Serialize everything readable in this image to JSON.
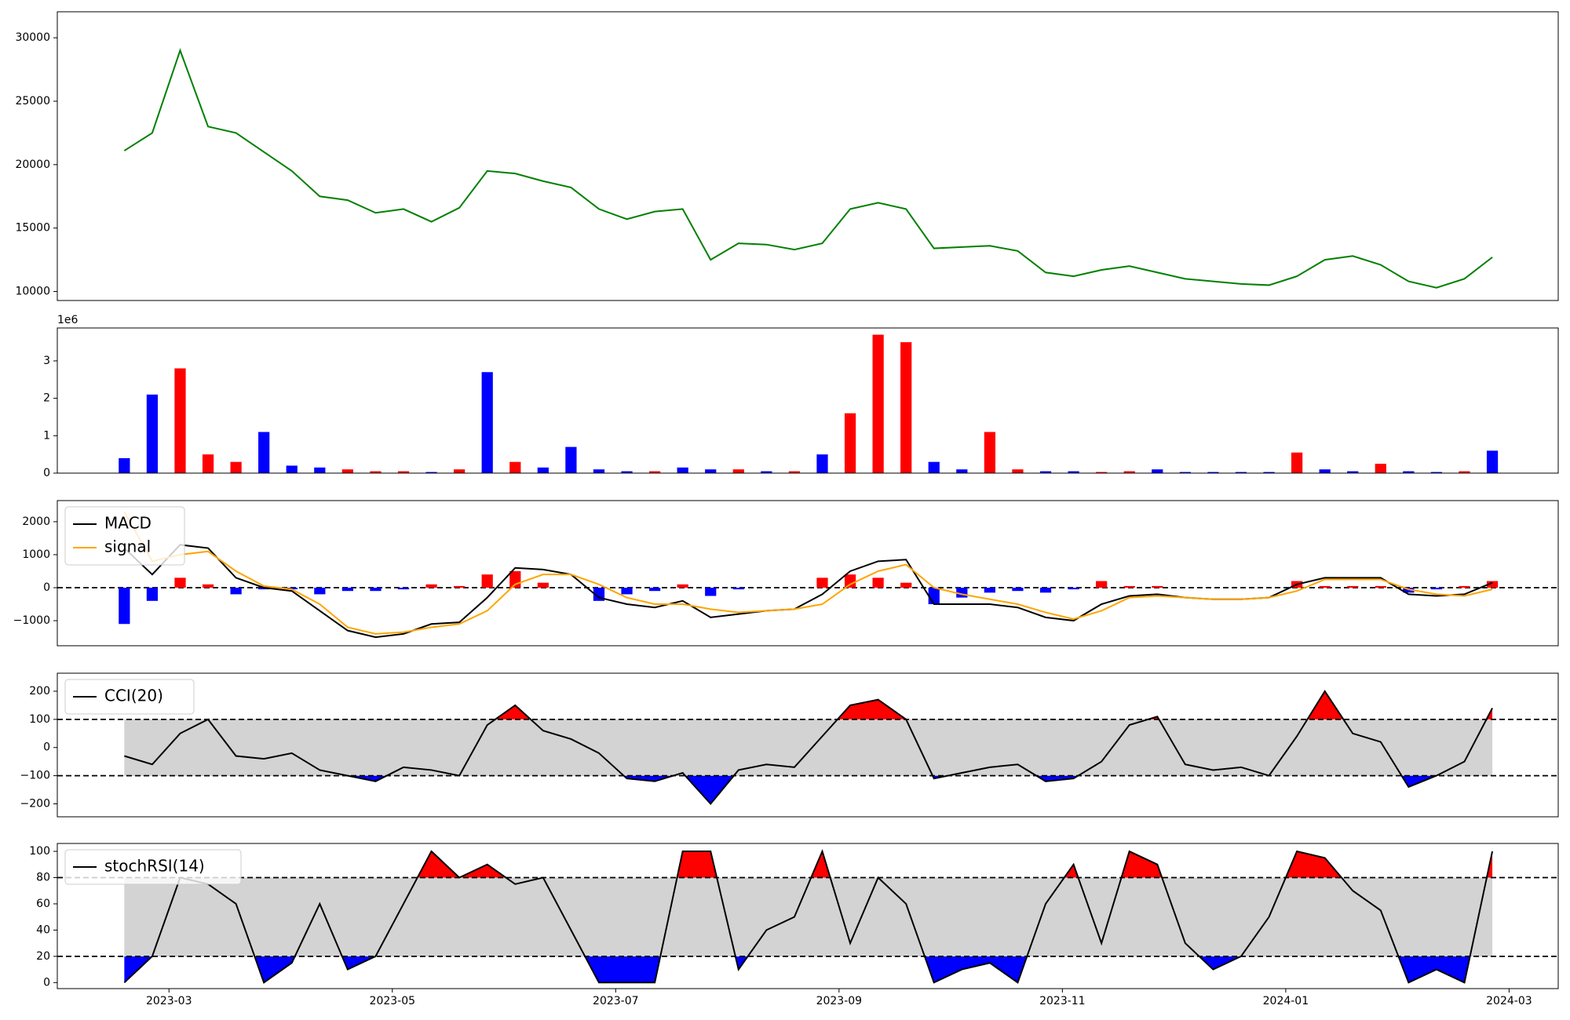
{
  "chart_data": [
    {
      "type": "line",
      "xlim": [
        2.0,
        15.44
      ],
      "ylim": [
        9290,
        32050
      ],
      "yticks": [
        10000,
        15000,
        20000,
        25000,
        30000
      ],
      "x": [
        2.6,
        2.85,
        3.1,
        3.35,
        3.6,
        3.85,
        4.1,
        4.35,
        4.6,
        4.85,
        5.1,
        5.35,
        5.6,
        5.85,
        6.1,
        6.35,
        6.6,
        6.85,
        7.1,
        7.35,
        7.6,
        7.85,
        8.1,
        8.35,
        8.6,
        8.85,
        9.1,
        9.35,
        9.6,
        9.85,
        10.1,
        10.35,
        10.6,
        10.85,
        11.1,
        11.35,
        11.6,
        11.85,
        12.1,
        12.35,
        12.6,
        12.85,
        13.1,
        13.35,
        13.6,
        13.85,
        14.1,
        14.35,
        14.6,
        14.85
      ],
      "series": [
        {
          "color": "green",
          "values": [
            21100,
            22500,
            29000,
            23000,
            22500,
            21000,
            19500,
            17500,
            17200,
            16200,
            16500,
            15500,
            16600,
            19500,
            19300,
            18700,
            18200,
            16500,
            15700,
            16300,
            16500,
            12500,
            13800,
            13700,
            13300,
            13800,
            16500,
            17000,
            16500,
            13400,
            13500,
            13600,
            13200,
            11500,
            11200,
            11700,
            12000,
            11500,
            11000,
            10800,
            10600,
            10500,
            11200,
            12500,
            12800,
            12100,
            10800,
            10300,
            11000,
            12700
          ]
        }
      ]
    },
    {
      "type": "bar",
      "xlim": [
        2.0,
        15.44
      ],
      "ylim": [
        0,
        3.88
      ],
      "yticks": [
        0,
        1,
        2,
        3
      ],
      "y_offset_label": "1e6",
      "x": [
        2.6,
        2.85,
        3.1,
        3.35,
        3.6,
        3.85,
        4.1,
        4.35,
        4.6,
        4.85,
        5.1,
        5.35,
        5.6,
        5.85,
        6.1,
        6.35,
        6.6,
        6.85,
        7.1,
        7.35,
        7.6,
        7.85,
        8.1,
        8.35,
        8.6,
        8.85,
        9.1,
        9.35,
        9.6,
        9.85,
        10.1,
        10.35,
        10.6,
        10.85,
        11.1,
        11.35,
        11.6,
        11.85,
        12.1,
        12.35,
        12.6,
        12.85,
        13.1,
        13.35,
        13.6,
        13.85,
        14.1,
        14.35,
        14.6,
        14.85
      ],
      "values": [
        0.4,
        2.1,
        2.8,
        0.5,
        0.3,
        1.1,
        0.2,
        0.15,
        0.1,
        0.05,
        0.05,
        0.03,
        0.1,
        2.7,
        0.3,
        0.15,
        0.7,
        0.1,
        0.05,
        0.05,
        0.15,
        0.1,
        0.1,
        0.05,
        0.05,
        0.5,
        1.6,
        3.7,
        3.5,
        0.3,
        0.1,
        1.1,
        0.1,
        0.05,
        0.05,
        0.03,
        0.05,
        0.1,
        0.03,
        0.03,
        0.03,
        0.03,
        0.55,
        0.1,
        0.05,
        0.25,
        0.05,
        0.03,
        0.05,
        0.6
      ],
      "bar_colors": [
        "blue",
        "blue",
        "red",
        "red",
        "red",
        "blue",
        "blue",
        "blue",
        "red",
        "red",
        "red",
        "blue",
        "red",
        "blue",
        "red",
        "blue",
        "blue",
        "blue",
        "blue",
        "red",
        "blue",
        "blue",
        "red",
        "blue",
        "red",
        "blue",
        "red",
        "red",
        "red",
        "blue",
        "blue",
        "red",
        "red",
        "blue",
        "blue",
        "red",
        "red",
        "blue",
        "blue",
        "blue",
        "blue",
        "blue",
        "red",
        "blue",
        "blue",
        "red",
        "blue",
        "blue",
        "red",
        "blue"
      ]
    },
    {
      "type": "line",
      "xlim": [
        2.0,
        15.44
      ],
      "ylim": [
        -1760,
        2640
      ],
      "yticks": [
        {
          "value": -1000,
          "label": "−1000"
        },
        0,
        1000,
        2000
      ],
      "hlines": [
        0
      ],
      "legend": "upper left",
      "x": [
        2.6,
        2.85,
        3.1,
        3.35,
        3.6,
        3.85,
        4.1,
        4.35,
        4.6,
        4.85,
        5.1,
        5.35,
        5.6,
        5.85,
        6.1,
        6.35,
        6.6,
        6.85,
        7.1,
        7.35,
        7.6,
        7.85,
        8.1,
        8.35,
        8.6,
        8.85,
        9.1,
        9.35,
        9.6,
        9.85,
        10.1,
        10.35,
        10.6,
        10.85,
        11.1,
        11.35,
        11.6,
        11.85,
        12.1,
        12.35,
        12.6,
        12.85,
        13.1,
        13.35,
        13.6,
        13.85,
        14.1,
        14.35,
        14.6,
        14.85
      ],
      "histogram": {
        "positive_color": "red",
        "negative_color": "blue",
        "values": [
          -1100,
          -400,
          300,
          100,
          -200,
          -50,
          -50,
          -200,
          -100,
          -100,
          -50,
          100,
          50,
          400,
          500,
          150,
          0,
          -400,
          -200,
          -100,
          100,
          -250,
          -50,
          0,
          0,
          300,
          400,
          300,
          150,
          -500,
          -300,
          -150,
          -100,
          -150,
          -50,
          200,
          50,
          50,
          0,
          0,
          0,
          0,
          200,
          50,
          50,
          50,
          -150,
          -50,
          50,
          200
        ]
      },
      "series": [
        {
          "name": "MACD",
          "color": "black",
          "values": [
            1200,
            400,
            1300,
            1200,
            300,
            0,
            -100,
            -700,
            -1300,
            -1500,
            -1400,
            -1100,
            -1050,
            -300,
            600,
            550,
            400,
            -300,
            -500,
            -600,
            -400,
            -900,
            -800,
            -700,
            -650,
            -200,
            500,
            800,
            850,
            -500,
            -500,
            -500,
            -600,
            -900,
            -1000,
            -500,
            -250,
            -200,
            -300,
            -350,
            -350,
            -300,
            100,
            300,
            300,
            300,
            -200,
            -250,
            -200,
            150
          ]
        },
        {
          "name": "signal",
          "color": "orange",
          "values": [
            2300,
            800,
            1000,
            1100,
            500,
            50,
            -50,
            -500,
            -1200,
            -1400,
            -1350,
            -1200,
            -1100,
            -700,
            100,
            400,
            400,
            100,
            -300,
            -500,
            -500,
            -650,
            -750,
            -700,
            -650,
            -500,
            100,
            500,
            700,
            0,
            -200,
            -350,
            -500,
            -750,
            -950,
            -700,
            -300,
            -250,
            -300,
            -350,
            -350,
            -300,
            -100,
            250,
            250,
            250,
            -50,
            -200,
            -250,
            -50
          ]
        }
      ]
    },
    {
      "type": "line",
      "xlim": [
        2.0,
        15.44
      ],
      "ylim": [
        -246,
        264
      ],
      "yticks": [
        {
          "value": -200,
          "label": "−200"
        },
        {
          "value": -100,
          "label": "−100"
        },
        0,
        100,
        200
      ],
      "legend": "upper left",
      "bands": {
        "lower": -100,
        "upper": 100,
        "fill": "lightgray",
        "above_color": "red",
        "below_color": "blue"
      },
      "x": [
        2.6,
        2.85,
        3.1,
        3.35,
        3.6,
        3.85,
        4.1,
        4.35,
        4.6,
        4.85,
        5.1,
        5.35,
        5.6,
        5.85,
        6.1,
        6.35,
        6.6,
        6.85,
        7.1,
        7.35,
        7.6,
        7.85,
        8.1,
        8.35,
        8.6,
        8.85,
        9.1,
        9.35,
        9.6,
        9.85,
        10.1,
        10.35,
        10.6,
        10.85,
        11.1,
        11.35,
        11.6,
        11.85,
        12.1,
        12.35,
        12.6,
        12.85,
        13.1,
        13.35,
        13.6,
        13.85,
        14.1,
        14.35,
        14.6,
        14.85
      ],
      "series": [
        {
          "name": "CCI(20)",
          "color": "black",
          "values": [
            -30,
            -60,
            50,
            100,
            -30,
            -40,
            -20,
            -80,
            -100,
            -120,
            -70,
            -80,
            -100,
            80,
            150,
            60,
            30,
            -20,
            -110,
            -120,
            -90,
            -200,
            -80,
            -60,
            -70,
            40,
            150,
            170,
            100,
            -110,
            -90,
            -70,
            -60,
            -120,
            -110,
            -50,
            80,
            110,
            -60,
            -80,
            -70,
            -100,
            40,
            200,
            50,
            20,
            -140,
            -100,
            -50,
            140
          ]
        }
      ]
    },
    {
      "type": "line",
      "xlim": [
        2.0,
        15.44
      ],
      "ylim": [
        -4.6,
        106
      ],
      "yticks": [
        0,
        20,
        40,
        60,
        80,
        100
      ],
      "legend": "upper left",
      "bands": {
        "lower": 20,
        "upper": 80,
        "fill": "lightgray",
        "above_color": "red",
        "below_color": "blue"
      },
      "xticks": [
        {
          "value": 3,
          "label": "2023-03"
        },
        {
          "value": 5,
          "label": "2023-05"
        },
        {
          "value": 7,
          "label": "2023-07"
        },
        {
          "value": 9,
          "label": "2023-09"
        },
        {
          "value": 11,
          "label": "2023-11"
        },
        {
          "value": 13,
          "label": "2024-01"
        },
        {
          "value": 15,
          "label": "2024-03"
        }
      ],
      "x": [
        2.6,
        2.85,
        3.1,
        3.35,
        3.6,
        3.85,
        4.1,
        4.35,
        4.6,
        4.85,
        5.1,
        5.35,
        5.6,
        5.85,
        6.1,
        6.35,
        6.6,
        6.85,
        7.1,
        7.35,
        7.6,
        7.85,
        8.1,
        8.35,
        8.6,
        8.85,
        9.1,
        9.35,
        9.6,
        9.85,
        10.1,
        10.35,
        10.6,
        10.85,
        11.1,
        11.35,
        11.6,
        11.85,
        12.1,
        12.35,
        12.6,
        12.85,
        13.1,
        13.35,
        13.6,
        13.85,
        14.1,
        14.35,
        14.6,
        14.85
      ],
      "series": [
        {
          "name": "stochRSI(14)",
          "color": "black",
          "values": [
            0,
            20,
            80,
            75,
            60,
            0,
            15,
            60,
            10,
            20,
            60,
            100,
            80,
            90,
            75,
            80,
            40,
            0,
            0,
            0,
            100,
            100,
            10,
            40,
            50,
            100,
            30,
            80,
            60,
            0,
            10,
            15,
            0,
            60,
            90,
            30,
            100,
            90,
            30,
            10,
            20,
            50,
            100,
            95,
            70,
            55,
            0,
            10,
            0,
            100
          ]
        }
      ]
    }
  ]
}
